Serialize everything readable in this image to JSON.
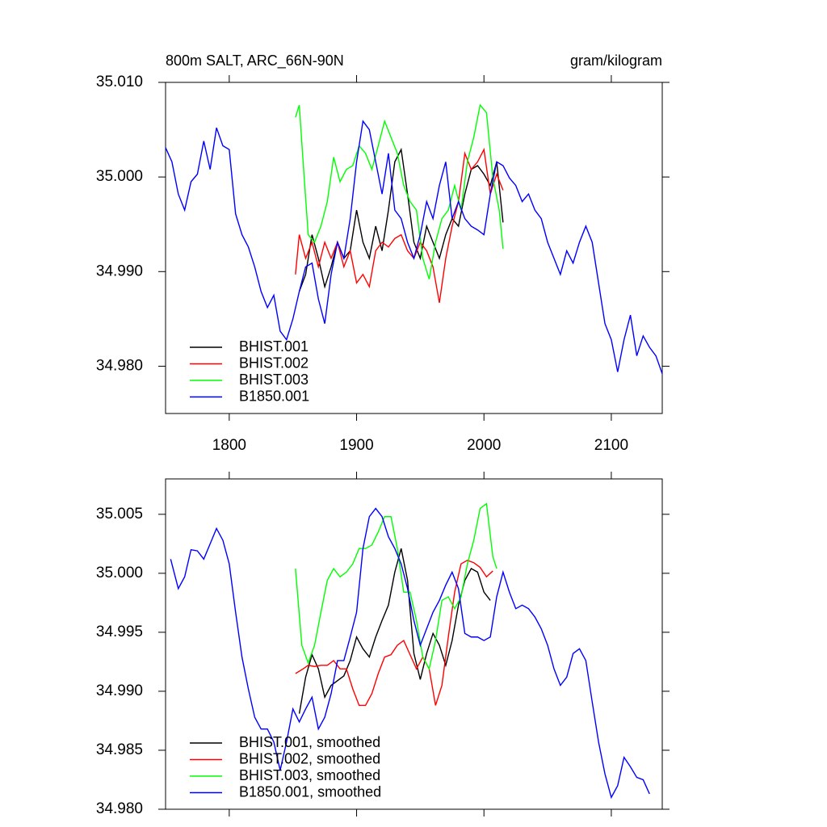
{
  "chart_data": [
    {
      "type": "line",
      "title": "800m SALT, ARC_66N-90N",
      "units": "gram/kilogram",
      "xlim": [
        1750,
        2140
      ],
      "xticks": [
        1800,
        1900,
        2000,
        2100
      ],
      "ylim": [
        34.975,
        35.01
      ],
      "yticks": [
        {
          "value": 34.98,
          "label": "34.980"
        },
        {
          "value": 34.99,
          "label": "34.990"
        },
        {
          "value": 35.0,
          "label": "35.000"
        },
        {
          "value": 35.01,
          "label": "35.010"
        }
      ],
      "legend": "lower left",
      "series": [
        {
          "name": "BHIST.001",
          "color": "#000000",
          "x": [
            1855,
            1860,
            1865,
            1870,
            1875,
            1880,
            1885,
            1890,
            1895,
            1900,
            1905,
            1910,
            1915,
            1920,
            1925,
            1930,
            1935,
            1940,
            1945,
            1950,
            1955,
            1960,
            1965,
            1970,
            1975,
            1980,
            1985,
            1990,
            1995,
            2000,
            2005,
            2010,
            2015
          ],
          "values": [
            34.9879,
            34.9897,
            34.9939,
            34.9914,
            34.9884,
            34.9905,
            34.9931,
            34.9914,
            34.9922,
            34.9965,
            34.9931,
            34.9914,
            34.9948,
            34.9922,
            34.9965,
            35.0016,
            35.0029,
            34.9982,
            34.9931,
            34.9914,
            34.9948,
            34.9931,
            34.9914,
            34.9939,
            34.9956,
            34.9948,
            34.9982,
            35.0008,
            35.0012,
            35.0003,
            34.9991,
            35.0016,
            34.9952
          ]
        },
        {
          "name": "BHIST.002",
          "color": "#ff0000",
          "x": [
            1852,
            1855,
            1860,
            1865,
            1870,
            1875,
            1880,
            1885,
            1890,
            1895,
            1900,
            1905,
            1910,
            1915,
            1920,
            1925,
            1930,
            1935,
            1940,
            1945,
            1950,
            1955,
            1960,
            1965,
            1970,
            1975,
            1980,
            1985,
            1990,
            1995,
            2000,
            2005,
            2010,
            2015
          ],
          "values": [
            34.9897,
            34.9939,
            34.9914,
            34.9931,
            34.9905,
            34.9931,
            34.9914,
            34.9931,
            34.9905,
            34.9922,
            34.9888,
            34.9897,
            34.9884,
            34.9922,
            34.9931,
            34.9926,
            34.9935,
            34.9939,
            34.9922,
            34.9914,
            34.9931,
            34.9922,
            34.9905,
            34.9867,
            34.9914,
            34.9948,
            34.9974,
            35.0025,
            35.0008,
            35.0016,
            35.0029,
            34.9982,
            35.0003,
            34.9986
          ]
        },
        {
          "name": "BHIST.003",
          "color": "#00ff00",
          "x": [
            1852,
            1855,
            1858,
            1862,
            1867,
            1872,
            1877,
            1882,
            1887,
            1892,
            1897,
            1902,
            1907,
            1912,
            1917,
            1922,
            1927,
            1932,
            1937,
            1942,
            1947,
            1952,
            1957,
            1962,
            1967,
            1972,
            1977,
            1982,
            1987,
            1992,
            1997,
            2002,
            2007,
            2012,
            2015
          ],
          "values": [
            35.0063,
            35.0076,
            35.0016,
            34.9939,
            34.9931,
            34.9948,
            34.9974,
            35.0021,
            34.9995,
            35.0008,
            35.0012,
            35.0033,
            35.0025,
            35.0008,
            35.0033,
            35.0059,
            35.0042,
            35.0025,
            34.9991,
            34.9974,
            34.9965,
            34.9914,
            34.9892,
            34.9931,
            34.9956,
            34.9965,
            34.9991,
            34.9965,
            35.0016,
            35.0042,
            35.0076,
            35.0068,
            34.9999,
            34.9965,
            34.9924
          ]
        },
        {
          "name": "B1850.001",
          "color": "#0000ff",
          "x": [
            1750,
            1755,
            1760,
            1765,
            1770,
            1775,
            1780,
            1785,
            1790,
            1795,
            1800,
            1805,
            1810,
            1815,
            1820,
            1825,
            1830,
            1835,
            1840,
            1845,
            1850,
            1855,
            1860,
            1865,
            1870,
            1875,
            1880,
            1885,
            1890,
            1895,
            1900,
            1905,
            1910,
            1915,
            1920,
            1925,
            1930,
            1935,
            1940,
            1945,
            1950,
            1955,
            1960,
            1965,
            1970,
            1975,
            1980,
            1985,
            1990,
            1995,
            2000,
            2005,
            2010,
            2015,
            2020,
            2025,
            2030,
            2035,
            2040,
            2045,
            2050,
            2055,
            2060,
            2065,
            2070,
            2075,
            2080,
            2085,
            2090,
            2095,
            2100,
            2105,
            2110,
            2115,
            2120,
            2125,
            2130,
            2135,
            2140
          ],
          "values": [
            35.0031,
            35.0016,
            34.9982,
            34.9965,
            34.9995,
            35.0003,
            35.0038,
            35.0008,
            35.0052,
            35.0033,
            35.0029,
            34.9961,
            34.9939,
            34.9926,
            34.9905,
            34.9879,
            34.9862,
            34.9875,
            34.9837,
            34.9828,
            34.985,
            34.9879,
            34.9905,
            34.9909,
            34.9871,
            34.9845,
            34.9897,
            34.9931,
            34.9914,
            34.9956,
            35.0016,
            35.0059,
            35.005,
            35.0016,
            34.9982,
            35.0025,
            34.9965,
            34.9956,
            34.9931,
            34.9914,
            34.9939,
            34.9974,
            34.9956,
            34.9991,
            35.0016,
            34.9956,
            34.9974,
            34.9956,
            34.9948,
            34.9944,
            34.9939,
            34.9982,
            35.0016,
            35.0012,
            34.9999,
            34.9991,
            34.9974,
            34.9982,
            34.9965,
            34.9956,
            34.9931,
            34.9914,
            34.9897,
            34.9922,
            34.9909,
            34.9931,
            34.9948,
            34.9931,
            34.9888,
            34.9845,
            34.9828,
            34.9794,
            34.9828,
            34.9854,
            34.9811,
            34.9832,
            34.982,
            34.9811,
            34.9792
          ]
        }
      ]
    },
    {
      "type": "line",
      "xlim": [
        1750,
        2140
      ],
      "xticks": [
        1800,
        1900,
        2000,
        2100
      ],
      "xtick_labels": false,
      "ylim": [
        34.98,
        35.008
      ],
      "yticks": [
        {
          "value": 34.98,
          "label": "34.980"
        },
        {
          "value": 34.985,
          "label": "34.985"
        },
        {
          "value": 34.99,
          "label": "34.990"
        },
        {
          "value": 34.995,
          "label": "34.995"
        },
        {
          "value": 35.0,
          "label": "35.000"
        },
        {
          "value": 35.005,
          "label": "35.005"
        }
      ],
      "legend": "lower left",
      "series": [
        {
          "name": "BHIST.001, smoothed",
          "color": "#000000",
          "x": [
            1855,
            1860,
            1865,
            1870,
            1875,
            1880,
            1885,
            1890,
            1895,
            1900,
            1905,
            1910,
            1915,
            1920,
            1925,
            1930,
            1935,
            1940,
            1945,
            1950,
            1955,
            1960,
            1965,
            1970,
            1975,
            1980,
            1985,
            1990,
            1995,
            2000,
            2005
          ],
          "values": [
            34.9881,
            34.9912,
            34.9931,
            34.9919,
            34.9895,
            34.9905,
            34.9909,
            34.9913,
            34.9926,
            34.9946,
            34.9936,
            34.9929,
            34.9946,
            34.996,
            34.9973,
            35.0001,
            35.0021,
            34.9994,
            34.9932,
            34.991,
            34.9932,
            34.9949,
            34.9939,
            34.9922,
            34.9943,
            34.9973,
            34.9994,
            35.0004,
            35.0001,
            34.9984,
            34.9977
          ]
        },
        {
          "name": "BHIST.002, smoothed",
          "color": "#ff0000",
          "x": [
            1852,
            1858,
            1862,
            1867,
            1872,
            1877,
            1882,
            1887,
            1892,
            1897,
            1902,
            1907,
            1912,
            1917,
            1922,
            1927,
            1932,
            1937,
            1942,
            1947,
            1952,
            1957,
            1962,
            1967,
            1972,
            1977,
            1982,
            1987,
            1992,
            1997,
            2002,
            2007
          ],
          "values": [
            34.9915,
            34.9919,
            34.9922,
            34.9921,
            34.9922,
            34.9922,
            34.9926,
            34.9919,
            34.9919,
            34.9902,
            34.9888,
            34.9888,
            34.9898,
            34.9915,
            34.9929,
            34.9931,
            34.9939,
            34.9943,
            34.9931,
            34.9919,
            34.9929,
            34.9919,
            34.9888,
            34.9905,
            34.9946,
            34.9984,
            35.0008,
            35.0011,
            35.0009,
            35.0005,
            34.9997,
            35.0002
          ]
        },
        {
          "name": "BHIST.003, smoothed",
          "color": "#00ff00",
          "x": [
            1852,
            1857,
            1862,
            1867,
            1872,
            1877,
            1882,
            1887,
            1892,
            1897,
            1902,
            1907,
            1912,
            1917,
            1922,
            1927,
            1932,
            1937,
            1942,
            1947,
            1952,
            1957,
            1962,
            1967,
            1972,
            1977,
            1982,
            1987,
            1992,
            1997,
            2002,
            2007,
            2010
          ],
          "values": [
            35.0004,
            34.9939,
            34.9924,
            34.9939,
            34.9967,
            34.9994,
            35.0004,
            34.9997,
            35.0001,
            35.0008,
            35.0021,
            35.0021,
            35.0024,
            35.0035,
            35.0048,
            35.0048,
            35.0021,
            34.9984,
            34.9984,
            34.996,
            34.9929,
            34.9919,
            34.9943,
            34.9977,
            34.998,
            34.997,
            34.998,
            35.0008,
            35.0028,
            35.0055,
            35.0059,
            35.0014,
            35.0004
          ]
        },
        {
          "name": "B1850.001, smoothed",
          "color": "#0000ff",
          "x": [
            1754,
            1760,
            1765,
            1770,
            1775,
            1780,
            1785,
            1790,
            1795,
            1800,
            1805,
            1810,
            1815,
            1820,
            1825,
            1830,
            1835,
            1840,
            1845,
            1850,
            1855,
            1860,
            1865,
            1870,
            1875,
            1880,
            1885,
            1890,
            1895,
            1900,
            1905,
            1910,
            1915,
            1920,
            1925,
            1930,
            1935,
            1940,
            1945,
            1950,
            1955,
            1960,
            1965,
            1970,
            1975,
            1980,
            1985,
            1990,
            1995,
            2000,
            2005,
            2010,
            2015,
            2020,
            2025,
            2030,
            2035,
            2040,
            2045,
            2050,
            2055,
            2060,
            2065,
            2070,
            2075,
            2080,
            2085,
            2090,
            2095,
            2100,
            2105,
            2110,
            2115,
            2120,
            2125,
            2130
          ],
          "values": [
            35.0012,
            34.9987,
            34.9997,
            35.002,
            35.0019,
            35.0012,
            35.0025,
            35.0038,
            35.0028,
            35.0008,
            34.9967,
            34.9929,
            34.9902,
            34.9878,
            34.9868,
            34.9868,
            34.9857,
            34.9833,
            34.9857,
            34.9885,
            34.9874,
            34.9885,
            34.9895,
            34.9868,
            34.9878,
            34.9898,
            34.9926,
            34.9926,
            34.9946,
            34.9967,
            35.0021,
            35.0048,
            35.0055,
            35.0048,
            35.0031,
            35.0021,
            35.0008,
            34.9987,
            34.996,
            34.9939,
            34.9953,
            34.9967,
            34.9977,
            34.999,
            35.0001,
            34.9987,
            34.9949,
            34.9946,
            34.9946,
            34.9943,
            34.9946,
            34.998,
            35.0001,
            34.9984,
            34.997,
            34.9973,
            34.997,
            34.9963,
            34.9953,
            34.9939,
            34.9919,
            34.9905,
            34.9912,
            34.9932,
            34.9936,
            34.9926,
            34.9891,
            34.9857,
            34.983,
            34.981,
            34.982,
            34.9844,
            34.9836,
            34.9827,
            34.9825,
            34.9813
          ]
        }
      ]
    }
  ]
}
